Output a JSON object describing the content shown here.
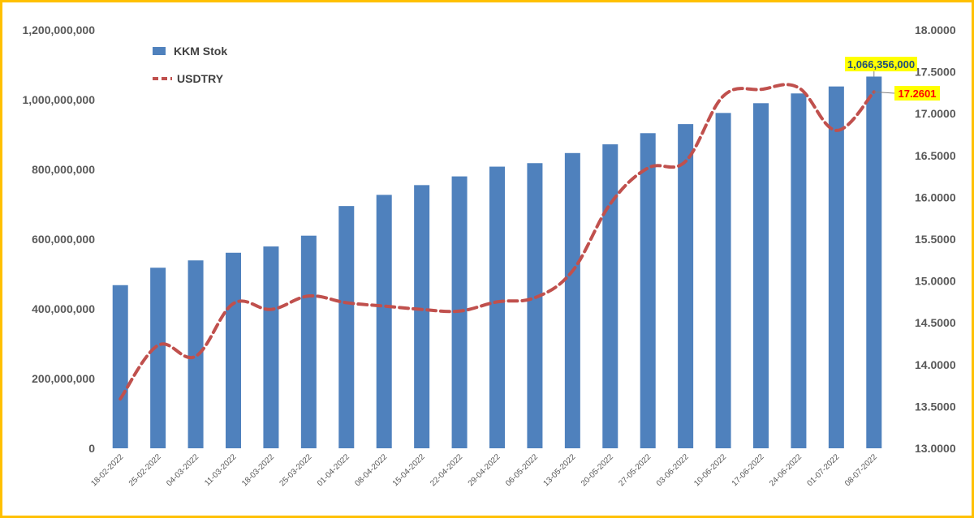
{
  "chart_data": {
    "type": "bar",
    "categories": [
      "18-02-2022",
      "25-02-2022",
      "04-03-2022",
      "11-03-2022",
      "18-03-2022",
      "25-03-2022",
      "01-04-2022",
      "08-04-2022",
      "15-04-2022",
      "22-04-2022",
      "29-04-2022",
      "06-05-2022",
      "13-05-2022",
      "20-05-2022",
      "27-05-2022",
      "03-06-2022",
      "10-06-2022",
      "17-06-2022",
      "24-06-2022",
      "01-07-2022",
      "08-07-2022"
    ],
    "series": [
      {
        "name": "KKM Stok",
        "type": "bar",
        "axis": "left",
        "color": "#4F81BD",
        "values": [
          468000000,
          518000000,
          539000000,
          561000000,
          579000000,
          610000000,
          695000000,
          727000000,
          755000000,
          780000000,
          808000000,
          818000000,
          847000000,
          872000000,
          904000000,
          930000000,
          962000000,
          990000000,
          1018000000,
          1038000000,
          1066356000
        ]
      },
      {
        "name": "USDTRY",
        "type": "line",
        "axis": "right",
        "color": "#C0504D",
        "dash": true,
        "values": [
          13.59,
          14.23,
          14.1,
          14.73,
          14.66,
          14.82,
          14.74,
          14.7,
          14.66,
          14.64,
          14.75,
          14.8,
          15.12,
          15.92,
          16.35,
          16.43,
          17.21,
          17.29,
          17.31,
          16.8,
          17.2601
        ]
      }
    ],
    "left_axis": {
      "min": 0,
      "max": 1200000000,
      "step": 200000000,
      "ticks": [
        "0",
        "200,000,000",
        "400,000,000",
        "600,000,000",
        "800,000,000",
        "1,000,000,000",
        "1,200,000,000"
      ]
    },
    "right_axis": {
      "min": 13.0,
      "max": 18.0,
      "step": 0.5,
      "ticks": [
        "13.0000",
        "13.5000",
        "14.0000",
        "14.5000",
        "15.0000",
        "15.5000",
        "16.0000",
        "16.5000",
        "17.0000",
        "17.5000",
        "18.0000"
      ]
    },
    "annotations": [
      {
        "label": "1,066,356,000",
        "series": "KKM Stok",
        "index": 20,
        "bg": "#FFFF00",
        "color": "#1F4E79"
      },
      {
        "label": "17.2601",
        "series": "USDTRY",
        "index": 20,
        "bg": "#FFFF00",
        "color": "#FF0000"
      }
    ],
    "legend_position": "top-left",
    "grid": false,
    "border_color": "#FFC000"
  }
}
